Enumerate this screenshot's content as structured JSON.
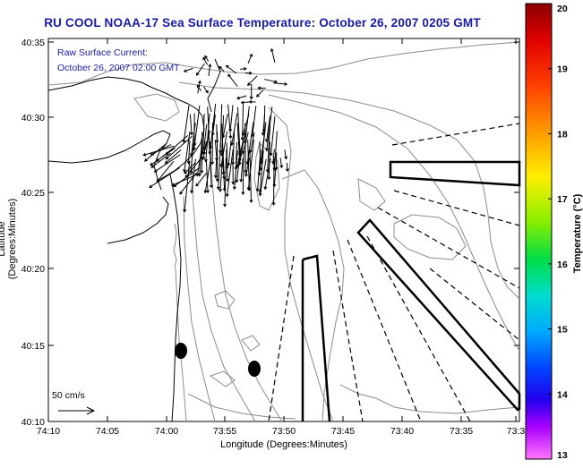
{
  "title": "RU COOL  NOAA-17  Sea Surface Temperature:  October 26, 2007 0205 GMT",
  "annotation": {
    "line1": "Raw Surface Current:",
    "line2": "October 26, 2007 02:00 GMT"
  },
  "scale_vector_label": "50 cm/s",
  "axes": {
    "xlabel": "Longitude (Degrees:Minutes)",
    "ylabel": "Latitude (Degrees:Minutes)",
    "x_ticks": [
      "74:10",
      "74:05",
      "74:00",
      "73:55",
      "73:50",
      "73:45",
      "73:40",
      "73:35",
      "73:3"
    ],
    "y_ticks": [
      "40:35",
      "40:30",
      "40:25",
      "40:20",
      "40:15",
      "40:10"
    ]
  },
  "colorbar": {
    "label": "Temperature (°C)",
    "min": 13,
    "max": 20,
    "ticks": [
      "20",
      "19",
      "18",
      "17",
      "16",
      "15",
      "14",
      "13"
    ]
  },
  "colors": {
    "title": "#1a1aa8",
    "contour": "#8c8c8c",
    "coastline": "#000000"
  }
}
